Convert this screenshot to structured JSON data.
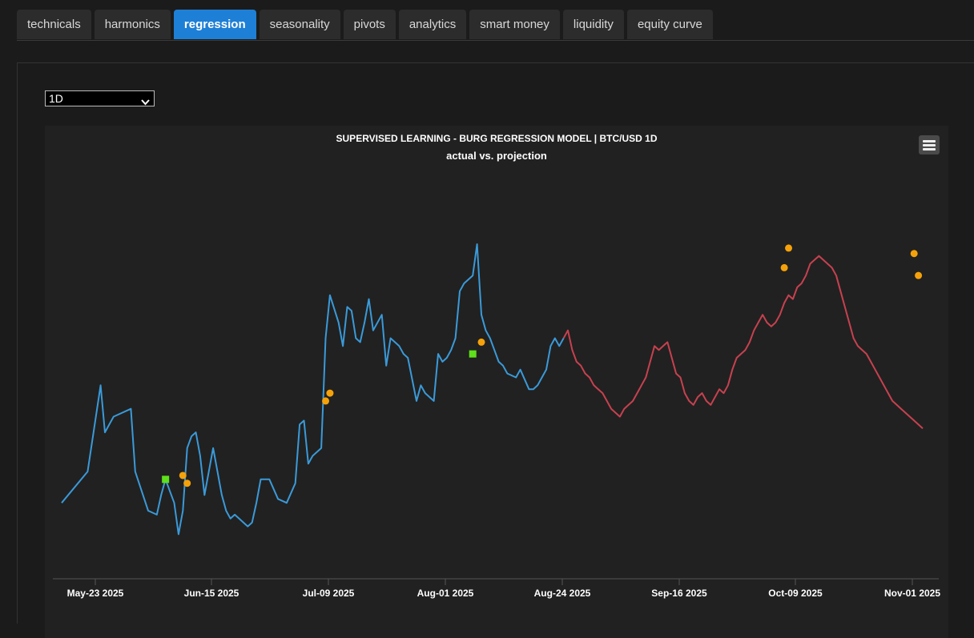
{
  "tabs": [
    {
      "label": "technicals",
      "active": false
    },
    {
      "label": "harmonics",
      "active": false
    },
    {
      "label": "regression",
      "active": true
    },
    {
      "label": "seasonality",
      "active": false
    },
    {
      "label": "pivots",
      "active": false
    },
    {
      "label": "analytics",
      "active": false
    },
    {
      "label": "smart money",
      "active": false
    },
    {
      "label": "liquidity",
      "active": false
    },
    {
      "label": "equity curve",
      "active": false
    }
  ],
  "timeframe": {
    "selected": "1D"
  },
  "colors": {
    "accent": "#1e7fd6",
    "actual": "#3a9ad9",
    "projection": "#c8414f",
    "orange_marker": "#f5a20a",
    "green_marker": "#5ee01a"
  },
  "chart_data": {
    "type": "line",
    "title": "SUPERVISED LEARNING - BURG REGRESSION MODEL | BTC/USD 1D",
    "subtitle": "actual vs. projection",
    "x_tick_labels": [
      "May-23 2025",
      "Jun-15 2025",
      "Jul-09 2025",
      "Aug-01 2025",
      "Aug-24 2025",
      "Sep-16 2025",
      "Oct-09 2025",
      "Nov-01 2025"
    ],
    "xlabel": "",
    "ylabel": "",
    "y_axis_labels_shown": false,
    "series": [
      {
        "role": "actual",
        "color": "#3a9ad9",
        "x": [
          0,
          6,
          9,
          10,
          11,
          12,
          16,
          17,
          20,
          22,
          23,
          24,
          26,
          27,
          28,
          29,
          30,
          31,
          32,
          33,
          35,
          36,
          37,
          38,
          39,
          40,
          43,
          44,
          45,
          46,
          48,
          50,
          52,
          54,
          55,
          56,
          57,
          58,
          60,
          61,
          62,
          64,
          65,
          66,
          67,
          68,
          69,
          70,
          71,
          72,
          74,
          75,
          76,
          77,
          78,
          79,
          80,
          82,
          83,
          84,
          86,
          87,
          88,
          89,
          90,
          91,
          92,
          93,
          94,
          95,
          96,
          97,
          98,
          99,
          100,
          101,
          102,
          103,
          105,
          106,
          108,
          109,
          110,
          111,
          112,
          113,
          114,
          115,
          116
        ],
        "y": [
          100,
          104,
          115,
          109,
          110,
          111,
          112,
          104,
          99,
          98.5,
          101,
          103,
          100,
          96,
          99,
          107,
          108.5,
          109,
          106,
          101,
          107,
          104,
          101,
          99,
          98,
          98.5,
          97,
          97.5,
          100,
          103,
          103,
          100.5,
          100,
          102.5,
          110,
          110.5,
          105,
          106,
          107,
          121,
          126.5,
          123,
          120,
          125,
          124.5,
          121,
          120.5,
          123,
          126,
          122,
          124,
          117.5,
          121,
          120.5,
          120,
          119,
          118.5,
          113,
          115,
          114,
          113,
          119,
          118,
          118.5,
          119.5,
          121,
          127,
          128,
          128.5,
          129,
          133,
          124,
          122,
          121,
          119.5,
          118,
          117.5,
          116.5,
          116,
          117,
          114.5,
          114.5,
          115,
          116,
          117,
          120,
          121,
          120,
          121
        ],
        "y_units_note": ""
      },
      {
        "role": "projection",
        "color": "#c8414f",
        "x": [
          116,
          117,
          118,
          119,
          120,
          121,
          122,
          123,
          124,
          125,
          126,
          127,
          128,
          129,
          130,
          131,
          132,
          133,
          134,
          135,
          136,
          137,
          138,
          139,
          140,
          141,
          142,
          143,
          144,
          145,
          146,
          147,
          148,
          149,
          150,
          151,
          152,
          153,
          154,
          155,
          156,
          157,
          158,
          159,
          160,
          161,
          162,
          163,
          164,
          165,
          166,
          167,
          168,
          169,
          170,
          171,
          172,
          173,
          174,
          175,
          176,
          177,
          178,
          179,
          180,
          181,
          182,
          183,
          184,
          185,
          186,
          187,
          188,
          189,
          190,
          191,
          192,
          193,
          194,
          195,
          196,
          197,
          198,
          199
        ],
        "y": [
          121,
          122,
          119.5,
          118,
          117.5,
          116.5,
          116,
          115,
          114.5,
          114,
          113,
          112,
          111.5,
          111,
          112,
          112.5,
          113,
          114,
          115,
          116,
          118,
          120,
          119.5,
          120,
          120.5,
          118.5,
          116.5,
          116,
          114,
          113,
          112.5,
          113.5,
          114,
          113,
          112.5,
          113.5,
          114.5,
          114,
          115,
          117,
          118.5,
          119,
          119.5,
          120.5,
          122,
          123,
          124,
          123,
          122.5,
          123,
          124,
          125.5,
          126.5,
          126,
          127.5,
          128,
          129,
          130.5,
          131,
          131.5,
          131,
          130.5,
          130,
          129,
          127,
          125,
          123,
          121,
          120,
          119.5,
          119,
          118,
          117,
          116,
          115,
          114,
          113,
          112.5,
          112,
          111.5,
          111,
          110.5,
          110,
          109.5
        ],
        "y_units_note": ""
      }
    ],
    "markers": [
      {
        "shape": "square",
        "color": "#5ee01a",
        "x": 24,
        "y": 103
      },
      {
        "shape": "circle",
        "color": "#f5a20a",
        "x": 28,
        "y": 103.5
      },
      {
        "shape": "circle",
        "color": "#f5a20a",
        "x": 29,
        "y": 102.5
      },
      {
        "shape": "circle",
        "color": "#f5a20a",
        "x": 61,
        "y": 113
      },
      {
        "shape": "circle",
        "color": "#f5a20a",
        "x": 62,
        "y": 114
      },
      {
        "shape": "square",
        "color": "#5ee01a",
        "x": 95,
        "y": 119
      },
      {
        "shape": "circle",
        "color": "#f5a20a",
        "x": 97,
        "y": 120.5
      },
      {
        "shape": "circle",
        "color": "#f5a20a",
        "x": 167,
        "y": 130
      },
      {
        "shape": "circle",
        "color": "#f5a20a",
        "x": 168,
        "y": 132.5
      },
      {
        "shape": "circle",
        "color": "#f5a20a",
        "x": 197,
        "y": 131.8
      },
      {
        "shape": "circle",
        "color": "#f5a20a",
        "x": 198,
        "y": 129
      }
    ],
    "grid": false,
    "legend": "none"
  }
}
